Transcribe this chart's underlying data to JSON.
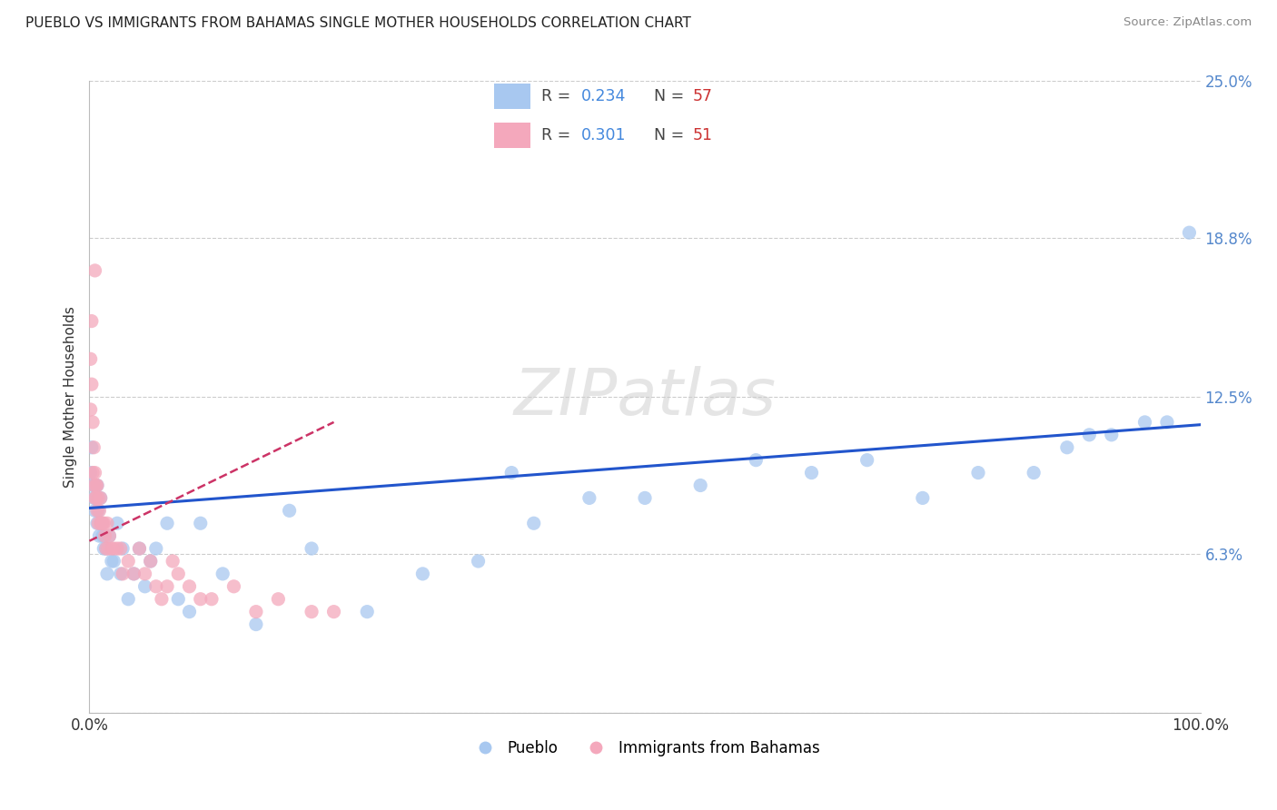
{
  "title": "PUEBLO VS IMMIGRANTS FROM BAHAMAS SINGLE MOTHER HOUSEHOLDS CORRELATION CHART",
  "source": "Source: ZipAtlas.com",
  "ylabel": "Single Mother Households",
  "xlim": [
    0,
    1.0
  ],
  "ylim": [
    0,
    0.25
  ],
  "ytick_vals": [
    0.0,
    0.063,
    0.125,
    0.188,
    0.25
  ],
  "ytick_labels": [
    "",
    "6.3%",
    "12.5%",
    "18.8%",
    "25.0%"
  ],
  "xtick_vals": [
    0.0,
    0.1,
    0.2,
    0.3,
    0.4,
    0.5,
    0.6,
    0.7,
    0.8,
    0.9,
    1.0
  ],
  "xtick_labels": [
    "0.0%",
    "",
    "",
    "",
    "",
    "",
    "",
    "",
    "",
    "",
    "100.0%"
  ],
  "watermark": "ZIPatlas",
  "legend_r1": "0.234",
  "legend_n1": "57",
  "legend_r2": "0.301",
  "legend_n2": "51",
  "pueblo_color": "#a8c8f0",
  "bahamas_color": "#f4a8bc",
  "trendline_pueblo_color": "#2255cc",
  "trendline_bahamas_color": "#cc3366",
  "pueblo_scatter_x": [
    0.001,
    0.002,
    0.003,
    0.004,
    0.005,
    0.005,
    0.006,
    0.007,
    0.007,
    0.008,
    0.009,
    0.01,
    0.011,
    0.012,
    0.013,
    0.015,
    0.016,
    0.018,
    0.02,
    0.022,
    0.025,
    0.028,
    0.03,
    0.035,
    0.04,
    0.045,
    0.05,
    0.055,
    0.06,
    0.07,
    0.08,
    0.09,
    0.1,
    0.12,
    0.15,
    0.18,
    0.2,
    0.25,
    0.3,
    0.35,
    0.38,
    0.4,
    0.45,
    0.5,
    0.55,
    0.6,
    0.65,
    0.7,
    0.75,
    0.8,
    0.85,
    0.88,
    0.9,
    0.92,
    0.95,
    0.97,
    0.99
  ],
  "pueblo_scatter_y": [
    0.095,
    0.105,
    0.09,
    0.085,
    0.09,
    0.08,
    0.085,
    0.075,
    0.09,
    0.08,
    0.07,
    0.085,
    0.075,
    0.07,
    0.065,
    0.065,
    0.055,
    0.07,
    0.06,
    0.06,
    0.075,
    0.055,
    0.065,
    0.045,
    0.055,
    0.065,
    0.05,
    0.06,
    0.065,
    0.075,
    0.045,
    0.04,
    0.075,
    0.055,
    0.035,
    0.08,
    0.065,
    0.04,
    0.055,
    0.06,
    0.095,
    0.075,
    0.085,
    0.085,
    0.09,
    0.1,
    0.095,
    0.1,
    0.085,
    0.095,
    0.095,
    0.105,
    0.11,
    0.11,
    0.115,
    0.115,
    0.19
  ],
  "bahamas_scatter_x": [
    0.001,
    0.001,
    0.002,
    0.002,
    0.003,
    0.003,
    0.004,
    0.004,
    0.005,
    0.005,
    0.005,
    0.006,
    0.006,
    0.007,
    0.007,
    0.008,
    0.008,
    0.009,
    0.01,
    0.01,
    0.011,
    0.012,
    0.013,
    0.014,
    0.015,
    0.016,
    0.017,
    0.018,
    0.02,
    0.022,
    0.025,
    0.028,
    0.03,
    0.035,
    0.04,
    0.045,
    0.05,
    0.055,
    0.06,
    0.065,
    0.07,
    0.075,
    0.08,
    0.09,
    0.1,
    0.11,
    0.13,
    0.15,
    0.17,
    0.2,
    0.22
  ],
  "bahamas_scatter_y": [
    0.14,
    0.12,
    0.155,
    0.13,
    0.115,
    0.095,
    0.105,
    0.09,
    0.095,
    0.085,
    0.175,
    0.09,
    0.085,
    0.09,
    0.08,
    0.085,
    0.075,
    0.08,
    0.085,
    0.075,
    0.075,
    0.075,
    0.075,
    0.07,
    0.065,
    0.075,
    0.065,
    0.07,
    0.065,
    0.065,
    0.065,
    0.065,
    0.055,
    0.06,
    0.055,
    0.065,
    0.055,
    0.06,
    0.05,
    0.045,
    0.05,
    0.06,
    0.055,
    0.05,
    0.045,
    0.045,
    0.05,
    0.04,
    0.045,
    0.04,
    0.04
  ],
  "pueblo_trend_x0": 0.0,
  "pueblo_trend_x1": 1.0,
  "pueblo_trend_y0": 0.081,
  "pueblo_trend_y1": 0.114,
  "bahamas_trend_x0": 0.0,
  "bahamas_trend_x1": 0.22,
  "bahamas_trend_y0": 0.068,
  "bahamas_trend_y1": 0.115
}
